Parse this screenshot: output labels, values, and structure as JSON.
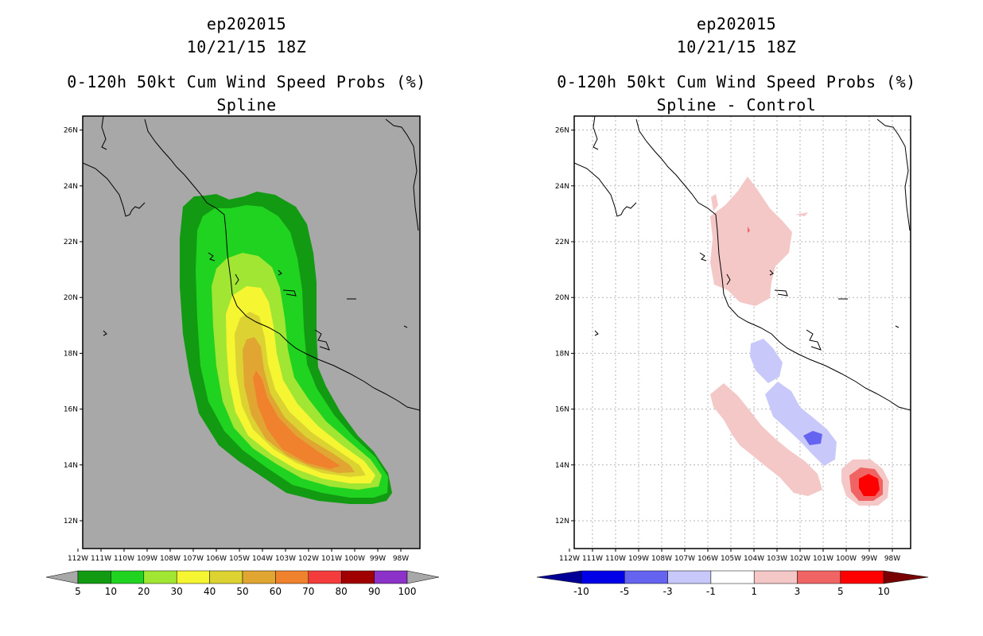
{
  "panels": [
    {
      "storm": "ep202015",
      "datetime": "10/21/15 18Z",
      "product": "0-120h 50kt Cum Wind Speed Probs (%)",
      "subtitle": "Spline"
    },
    {
      "storm": "ep202015",
      "datetime": "10/21/15 18Z",
      "product": "0-120h 50kt Cum Wind Speed Probs (%)",
      "subtitle": "Spline - Control"
    }
  ],
  "chart_data": [
    {
      "type": "heatmap",
      "title": "0-120h 50kt Cum Wind Speed Probs (%)",
      "subtitle": "Spline",
      "x_ticks": [
        "112W",
        "111W",
        "110W",
        "109W",
        "108W",
        "107W",
        "106W",
        "105W",
        "104W",
        "103W",
        "102W",
        "101W",
        "100W",
        "99W",
        "98W"
      ],
      "y_ticks": [
        "12N",
        "14N",
        "16N",
        "18N",
        "20N",
        "22N",
        "24N",
        "26N"
      ],
      "lon_range": [
        -112,
        -98
      ],
      "lat_range": [
        11,
        26.5
      ],
      "background_color": "#a8a8a8",
      "grid": false,
      "colorbar": {
        "labels": [
          "5",
          "10",
          "20",
          "30",
          "40",
          "50",
          "60",
          "70",
          "80",
          "90",
          "100"
        ],
        "colors": [
          "#129b12",
          "#21d321",
          "#a0e632",
          "#f5f532",
          "#dcd232",
          "#e1a532",
          "#f0822d",
          "#f53c3c",
          "#a00000",
          "#8c32c8"
        ],
        "end_color": "#a8a8a8"
      }
    },
    {
      "type": "heatmap",
      "title": "0-120h 50kt Cum Wind Speed Probs (%)",
      "subtitle": "Spline - Control",
      "x_ticks": [
        "112W",
        "111W",
        "110W",
        "109W",
        "108W",
        "107W",
        "106W",
        "105W",
        "104W",
        "103W",
        "102W",
        "101W",
        "100W",
        "99W",
        "98W"
      ],
      "y_ticks": [
        "12N",
        "14N",
        "16N",
        "18N",
        "20N",
        "22N",
        "24N",
        "26N"
      ],
      "lon_range": [
        -112,
        -98
      ],
      "lat_range": [
        11,
        26.5
      ],
      "background_color": "#ffffff",
      "grid": true,
      "colorbar": {
        "labels": [
          "-10",
          "-5",
          "-3",
          "-1",
          "1",
          "3",
          "5",
          "10"
        ],
        "colors": [
          "#0000e6",
          "#6464f0",
          "#c8c8fa",
          "#ffffff",
          "#f5c8c8",
          "#f06464",
          "#ff0000"
        ],
        "low_end_color": "#000096",
        "high_end_color": "#780000"
      }
    }
  ]
}
